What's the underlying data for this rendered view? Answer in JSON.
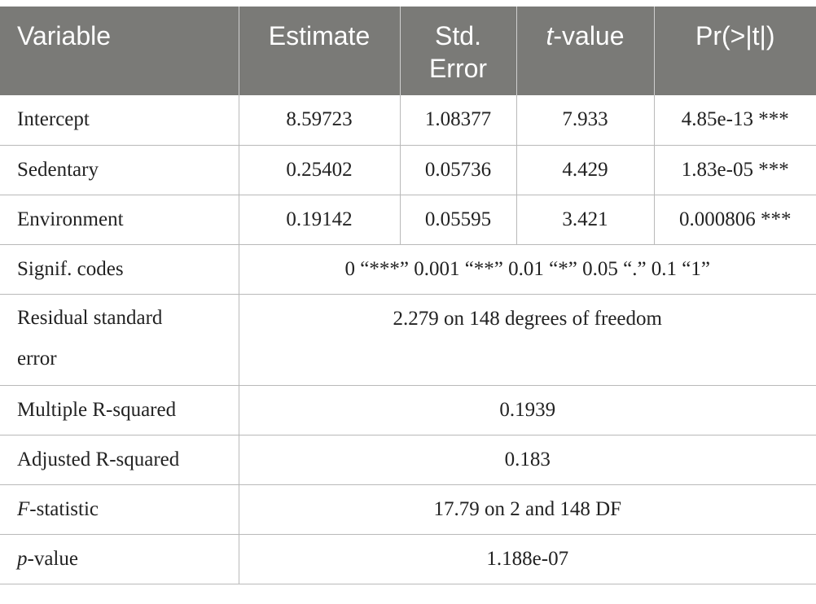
{
  "header": {
    "variable": "Variable",
    "estimate": "Estimate",
    "std_error_line1": "Std.",
    "std_error_line2": "Error",
    "t_value_italic": "t",
    "t_value_rest": "-value",
    "pr": "Pr(>|t|)"
  },
  "coefficients": [
    {
      "variable": "Intercept",
      "estimate": "8.59723",
      "std_error": "1.08377",
      "t_value": "7.933",
      "pr": "4.85e-13 ***"
    },
    {
      "variable": "Sedentary",
      "estimate": "0.25402",
      "std_error": "0.05736",
      "t_value": "4.429",
      "pr": "1.83e-05 ***"
    },
    {
      "variable": "Environment",
      "estimate": "0.19142",
      "std_error": "0.05595",
      "t_value": "3.421",
      "pr": "0.000806 ***"
    }
  ],
  "summary": {
    "signif_codes": {
      "label": "Signif. codes",
      "value": "0 “***” 0.001 “**” 0.01 “*” 0.05 “.” 0.1 “1”"
    },
    "residual_se": {
      "label_line1": "Residual standard",
      "label_line2": "error",
      "value": "2.279 on 148 degrees of freedom"
    },
    "multiple_r2": {
      "label": "Multiple R-squared",
      "value": "0.1939"
    },
    "adjusted_r2": {
      "label": "Adjusted R-squared",
      "value": "0.183"
    },
    "f_statistic": {
      "label_italic": "F",
      "label_rest": "-statistic",
      "value": "17.79 on 2 and 148 DF"
    },
    "p_value": {
      "label_italic": "p",
      "label_rest": "-value",
      "value": "1.188e-07"
    }
  }
}
